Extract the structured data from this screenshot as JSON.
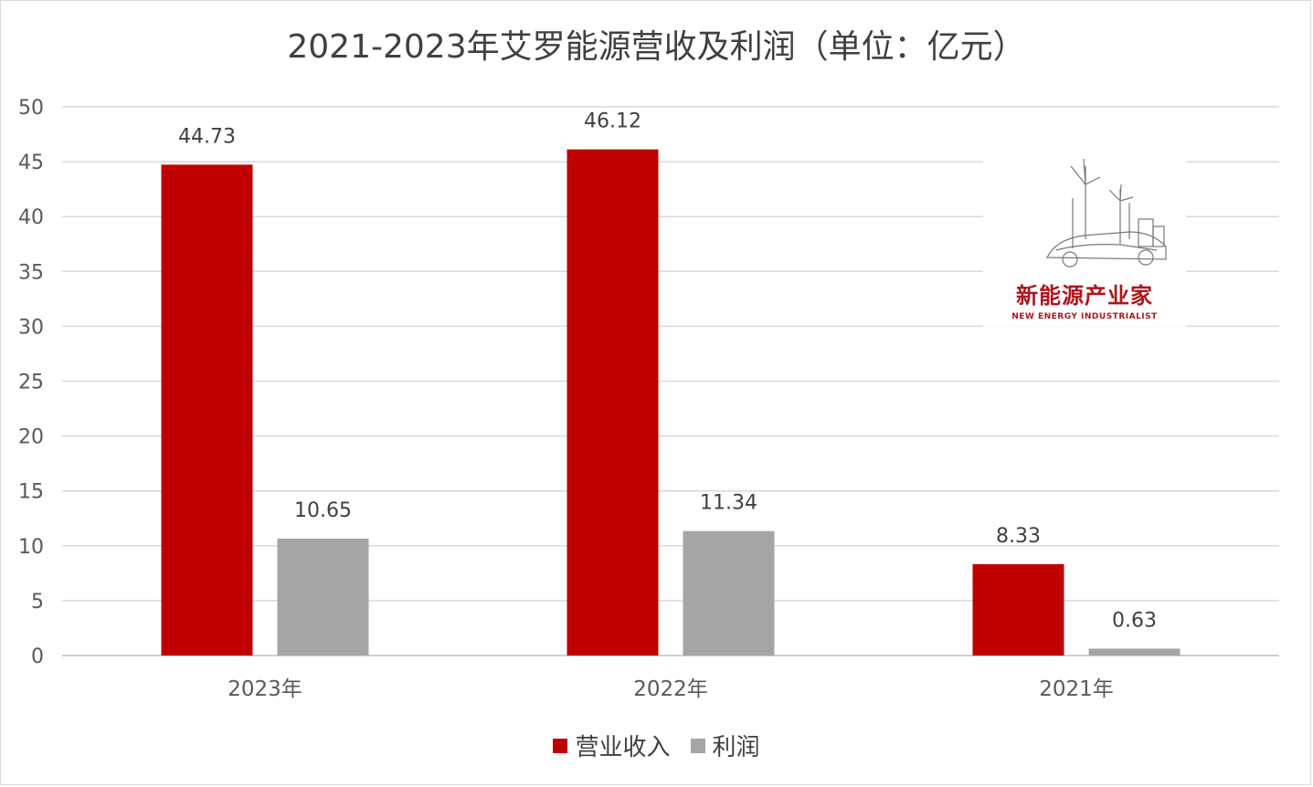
{
  "chart_data": {
    "type": "bar",
    "title": "2021-2023年艾罗能源营收及利润（单位：亿元）",
    "categories": [
      "2023年",
      "2022年",
      "2021年"
    ],
    "series": [
      {
        "name": "营业收入",
        "values": [
          44.73,
          46.12,
          8.33
        ],
        "color": "#c00000"
      },
      {
        "name": "利润",
        "values": [
          10.65,
          11.34,
          0.63
        ],
        "color": "#a5a5a5"
      }
    ],
    "data_labels": [
      [
        "44.73",
        "46.12",
        "8.33"
      ],
      [
        "10.65",
        "11.34",
        "0.63"
      ]
    ],
    "ylim": [
      0,
      50
    ],
    "yticks": [
      0,
      5,
      10,
      15,
      20,
      25,
      30,
      35,
      40,
      45,
      50
    ],
    "grid": true,
    "legend_position": "bottom"
  },
  "watermark": {
    "name_cn": "新能源产业家",
    "name_en": "NEW ENERGY INDUSTRIALIST",
    "icon": "wind-turbine-car-logo-icon"
  }
}
